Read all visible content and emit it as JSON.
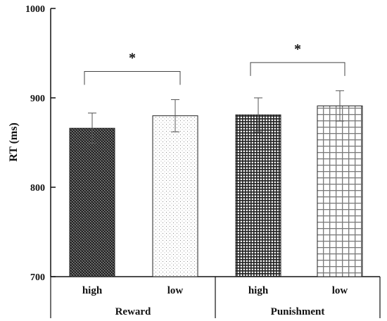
{
  "chart_data": {
    "type": "bar",
    "ylabel": "RT (ms)",
    "ylim": [
      700,
      1000
    ],
    "yticks": [
      "700",
      "800",
      "900",
      "1000"
    ],
    "groups": [
      {
        "label": "Reward",
        "bars": [
          {
            "label": "high",
            "value": 866,
            "error": 17,
            "pattern": "dark-crosshatch"
          },
          {
            "label": "low",
            "value": 880,
            "error": 18,
            "pattern": "light-dots"
          }
        ]
      },
      {
        "label": "Punishment",
        "bars": [
          {
            "label": "high",
            "value": 881,
            "error": 19,
            "pattern": "dense-grid"
          },
          {
            "label": "low",
            "value": 891,
            "error": 17,
            "pattern": "light-grid"
          }
        ]
      }
    ],
    "significance": [
      {
        "group": "Reward",
        "marker": "*"
      },
      {
        "group": "Punishment",
        "marker": "*"
      }
    ],
    "grid": false,
    "legend": "none"
  }
}
